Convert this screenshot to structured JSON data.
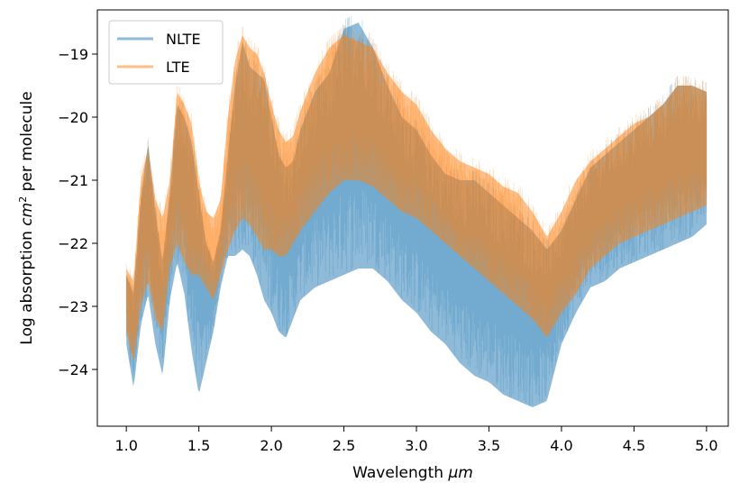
{
  "chart_data": {
    "type": "line",
    "title": "",
    "xlabel": "Wavelength",
    "xlabel_unit": "μm",
    "ylabel": "Log absorption",
    "ylabel_unit": "cm",
    "ylabel_unit_exp": "2",
    "ylabel_suffix": "per molecule",
    "xlim": [
      0.8,
      5.15
    ],
    "ylim": [
      -24.9,
      -18.3
    ],
    "xticks": [
      1.0,
      1.5,
      2.0,
      2.5,
      3.0,
      3.5,
      4.0,
      4.5,
      5.0
    ],
    "xtick_labels": [
      "1.0",
      "1.5",
      "2.0",
      "2.5",
      "3.0",
      "3.5",
      "4.0",
      "4.5",
      "5.0"
    ],
    "yticks": [
      -24,
      -23,
      -22,
      -21,
      -20,
      -19
    ],
    "ytick_labels": [
      "−24",
      "−23",
      "−22",
      "−21",
      "−20",
      "−19"
    ],
    "legend_position": "top-left",
    "grid": false,
    "series": [
      {
        "name": "NLTE",
        "color": "#1f77b4",
        "alpha": 0.5,
        "x": [
          1.0,
          1.05,
          1.1,
          1.15,
          1.2,
          1.25,
          1.3,
          1.35,
          1.4,
          1.45,
          1.5,
          1.55,
          1.6,
          1.65,
          1.7,
          1.75,
          1.8,
          1.85,
          1.9,
          1.95,
          2.0,
          2.05,
          2.1,
          2.15,
          2.2,
          2.3,
          2.4,
          2.5,
          2.6,
          2.7,
          2.8,
          2.9,
          3.0,
          3.1,
          3.2,
          3.3,
          3.4,
          3.5,
          3.6,
          3.7,
          3.8,
          3.9,
          4.0,
          4.1,
          4.2,
          4.3,
          4.4,
          4.5,
          4.6,
          4.7,
          4.8,
          4.9,
          5.0
        ],
        "upper": [
          -22.5,
          -22.8,
          -21.3,
          -20.4,
          -21.5,
          -22.3,
          -21.2,
          -19.8,
          -20.0,
          -20.4,
          -21.2,
          -22.0,
          -22.3,
          -21.8,
          -20.6,
          -19.5,
          -18.8,
          -19.2,
          -19.3,
          -19.4,
          -20.0,
          -20.6,
          -20.8,
          -20.7,
          -20.2,
          -19.6,
          -19.3,
          -18.6,
          -18.5,
          -18.9,
          -19.5,
          -20.0,
          -20.2,
          -20.6,
          -20.9,
          -21.0,
          -21.0,
          -21.2,
          -21.4,
          -21.6,
          -21.8,
          -22.1,
          -21.8,
          -21.3,
          -20.8,
          -20.6,
          -20.4,
          -20.2,
          -20.0,
          -19.8,
          -19.5,
          -19.5,
          -19.6
        ],
        "lower": [
          -23.6,
          -24.3,
          -23.3,
          -22.8,
          -23.6,
          -24.1,
          -22.9,
          -22.3,
          -22.8,
          -23.7,
          -24.4,
          -23.9,
          -23.4,
          -22.7,
          -22.2,
          -22.2,
          -22.1,
          -22.2,
          -22.5,
          -22.9,
          -23.1,
          -23.4,
          -23.5,
          -23.2,
          -22.9,
          -22.7,
          -22.6,
          -22.5,
          -22.4,
          -22.4,
          -22.6,
          -22.9,
          -23.1,
          -23.4,
          -23.6,
          -23.9,
          -24.1,
          -24.2,
          -24.4,
          -24.5,
          -24.6,
          -24.5,
          -23.6,
          -23.1,
          -22.7,
          -22.6,
          -22.4,
          -22.3,
          -22.2,
          -22.1,
          -22.0,
          -21.9,
          -21.7
        ]
      },
      {
        "name": "LTE",
        "color": "#ff7f0e",
        "alpha": 0.5,
        "x": [
          1.0,
          1.05,
          1.1,
          1.15,
          1.2,
          1.25,
          1.3,
          1.35,
          1.4,
          1.45,
          1.5,
          1.55,
          1.6,
          1.65,
          1.7,
          1.75,
          1.8,
          1.85,
          1.9,
          1.95,
          2.0,
          2.05,
          2.1,
          2.15,
          2.2,
          2.3,
          2.4,
          2.5,
          2.6,
          2.7,
          2.8,
          2.9,
          3.0,
          3.1,
          3.2,
          3.3,
          3.4,
          3.5,
          3.6,
          3.7,
          3.8,
          3.9,
          4.0,
          4.1,
          4.2,
          4.3,
          4.4,
          4.5,
          4.6,
          4.7,
          4.8,
          4.9,
          5.0
        ],
        "upper": [
          -22.4,
          -22.6,
          -21.0,
          -20.5,
          -21.3,
          -21.6,
          -21.0,
          -19.6,
          -19.8,
          -20.1,
          -21.0,
          -21.5,
          -21.6,
          -21.3,
          -20.0,
          -19.1,
          -18.7,
          -18.9,
          -19.0,
          -19.3,
          -19.8,
          -20.2,
          -20.4,
          -20.3,
          -19.9,
          -19.3,
          -18.9,
          -18.7,
          -18.8,
          -18.9,
          -19.3,
          -19.6,
          -19.8,
          -20.2,
          -20.5,
          -20.7,
          -20.8,
          -20.9,
          -21.1,
          -21.2,
          -21.5,
          -21.9,
          -21.5,
          -21.0,
          -20.7,
          -20.5,
          -20.3,
          -20.1,
          -20.0,
          -19.8,
          -19.5,
          -19.5,
          -19.6
        ],
        "lower": [
          -23.4,
          -23.9,
          -23.0,
          -22.6,
          -23.2,
          -23.4,
          -22.4,
          -22.0,
          -22.3,
          -22.5,
          -22.5,
          -22.7,
          -22.9,
          -22.5,
          -22.1,
          -21.8,
          -21.6,
          -21.7,
          -21.9,
          -22.1,
          -22.1,
          -22.2,
          -22.2,
          -22.0,
          -21.8,
          -21.5,
          -21.2,
          -21.0,
          -21.0,
          -21.1,
          -21.3,
          -21.5,
          -21.6,
          -21.8,
          -22.0,
          -22.2,
          -22.4,
          -22.6,
          -22.8,
          -23.0,
          -23.2,
          -23.5,
          -23.1,
          -22.8,
          -22.4,
          -22.2,
          -22.0,
          -21.9,
          -21.8,
          -21.7,
          -21.6,
          -21.5,
          -21.4
        ]
      }
    ]
  }
}
